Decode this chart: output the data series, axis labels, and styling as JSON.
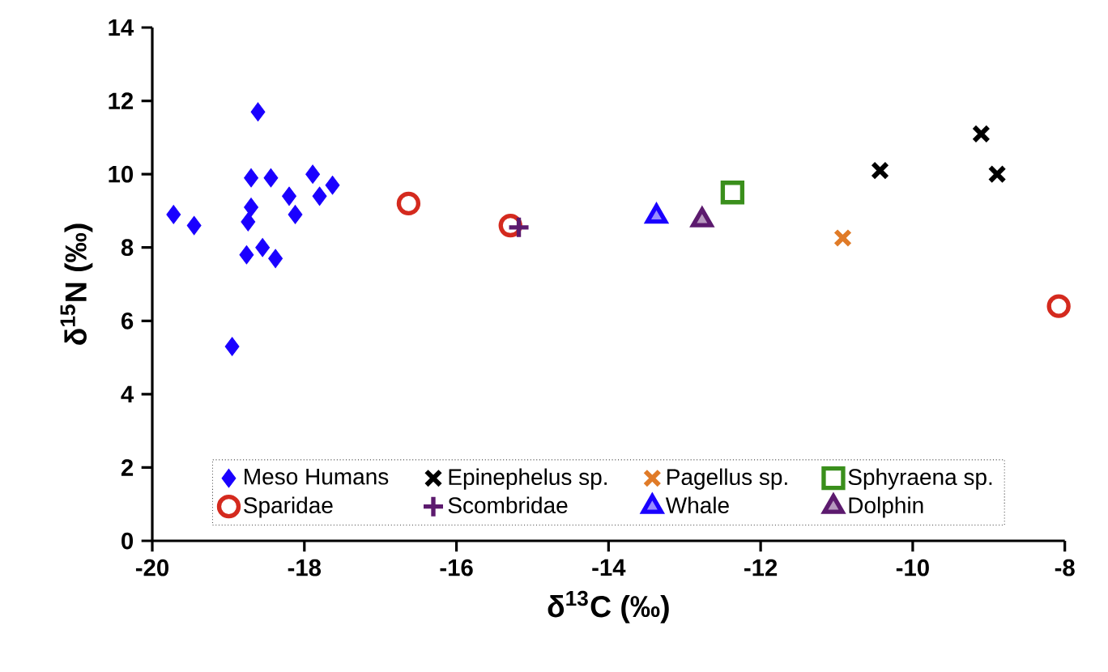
{
  "chart_data": {
    "type": "scatter",
    "xlabel": "δ$^{13}$C (‰)",
    "ylabel": "δ$^{15}$N (‰)",
    "xlim": [
      -20,
      -8
    ],
    "ylim": [
      0,
      14
    ],
    "xticks": [
      -20,
      -18,
      -16,
      -14,
      -12,
      -10,
      -8
    ],
    "yticks": [
      0,
      2,
      4,
      6,
      8,
      10,
      12,
      14
    ],
    "grid": false,
    "legend": "bottom",
    "series": [
      {
        "name": "Meso Humans",
        "color": "#1a00ff",
        "marker": "diamond",
        "x": [
          -18.61,
          -18.95,
          -19.72,
          -19.45,
          -18.7,
          -18.44,
          -18.7,
          -18.74,
          -18.76,
          -18.55,
          -18.38,
          -18.2,
          -18.12,
          -17.89,
          -17.8,
          -17.63
        ],
        "values": [
          11.7,
          5.3,
          8.9,
          8.6,
          9.9,
          9.9,
          9.1,
          8.7,
          7.8,
          8.0,
          7.7,
          9.4,
          8.9,
          10.0,
          9.4,
          9.7
        ]
      },
      {
        "name": "Epinephelus sp.",
        "color": "#000000",
        "marker": "cross",
        "x": [
          -10.43,
          -9.1,
          -8.89
        ],
        "values": [
          10.1,
          11.1,
          10.0
        ]
      },
      {
        "name": "Pagellus sp.",
        "color": "#e07b28",
        "marker": "cross",
        "x": [
          -10.92
        ],
        "values": [
          8.26
        ]
      },
      {
        "name": "Sphyraena sp.",
        "color": "#3a8f1c",
        "marker": "square",
        "x": [
          -12.37
        ],
        "values": [
          9.5
        ]
      },
      {
        "name": "Sparidae",
        "color": "#d42a1e",
        "marker": "circle",
        "x": [
          -16.63,
          -15.29,
          -8.08
        ],
        "values": [
          9.2,
          8.6,
          6.4
        ]
      },
      {
        "name": "Scombridae",
        "color": "#5c1a6e",
        "marker": "plus",
        "x": [
          -15.18
        ],
        "values": [
          8.55
        ]
      },
      {
        "name": "Whale",
        "color": "#1a00ff",
        "marker": "triangle",
        "x": [
          -13.37
        ],
        "values": [
          8.85
        ]
      },
      {
        "name": "Dolphin",
        "color": "#5c1a6e",
        "marker": "triangle",
        "x": [
          -12.77
        ],
        "values": [
          8.75
        ]
      }
    ]
  }
}
